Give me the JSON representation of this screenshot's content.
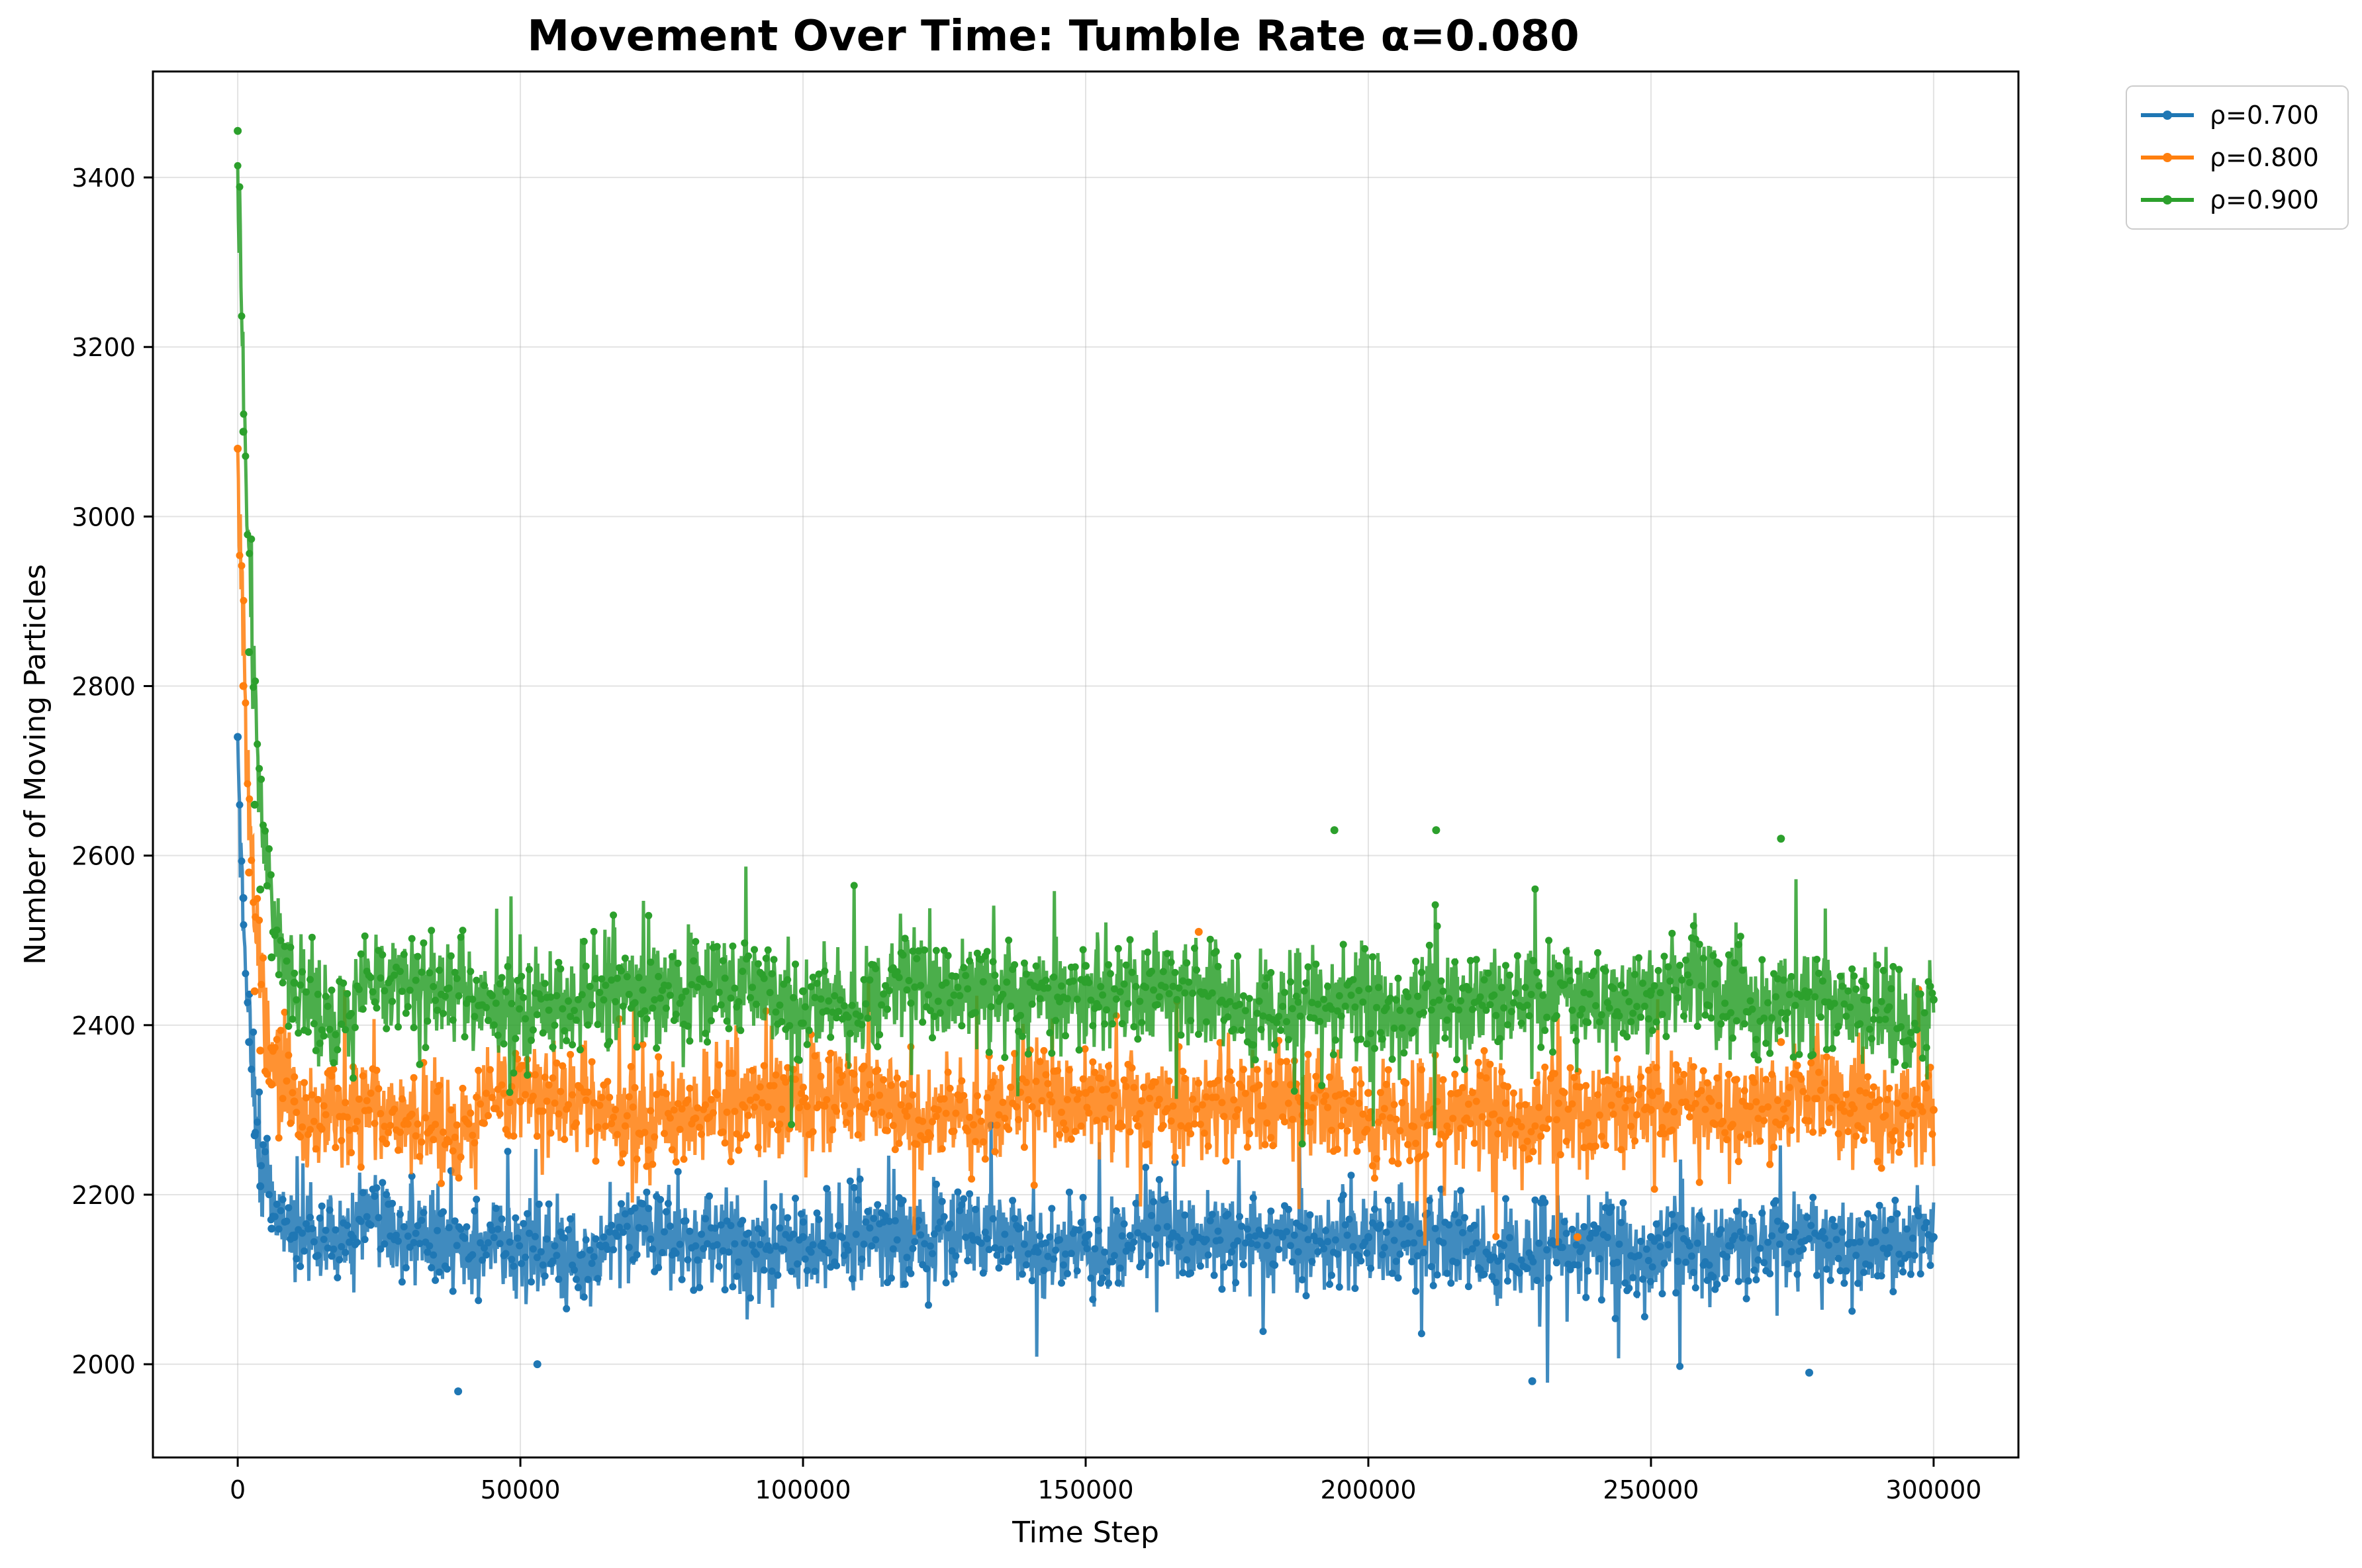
{
  "chart_data": {
    "type": "line",
    "title": "Movement Over Time: Tumble Rate α=0.080",
    "xlabel": "Time Step",
    "ylabel": "Number of Moving Particles",
    "xlim": [
      -15000,
      315000
    ],
    "ylim": [
      1890,
      3525
    ],
    "xticks": [
      0,
      50000,
      100000,
      150000,
      200000,
      250000,
      300000
    ],
    "yticks": [
      2000,
      2200,
      2400,
      2600,
      2800,
      3000,
      3200,
      3400
    ],
    "grid": true,
    "legend_position": "outside-top-right",
    "series": [
      {
        "name": "ρ=0.700",
        "color": "#1f77b4",
        "start_value": 2740,
        "steady_mean": 2150,
        "steady_range": [
          1968,
          2300
        ],
        "decay_steps": 2200,
        "points": [
          [
            0,
            2740
          ],
          [
            1000,
            2550
          ],
          [
            2000,
            2380
          ],
          [
            3000,
            2270
          ],
          [
            4000,
            2210
          ],
          [
            6000,
            2160
          ],
          [
            10000,
            2150
          ],
          [
            39000,
            1968
          ],
          [
            53000,
            2000
          ],
          [
            100000,
            2150
          ],
          [
            150000,
            2150
          ],
          [
            200000,
            2150
          ],
          [
            229000,
            1980
          ],
          [
            250000,
            2150
          ],
          [
            278000,
            1990
          ],
          [
            300000,
            2150
          ]
        ]
      },
      {
        "name": "ρ=0.800",
        "color": "#ff7f0e",
        "start_value": 3080,
        "steady_mean": 2310,
        "steady_range": [
          2140,
          2510
        ],
        "decay_steps": 2500,
        "points": [
          [
            0,
            3080
          ],
          [
            1000,
            2800
          ],
          [
            2000,
            2580
          ],
          [
            3000,
            2440
          ],
          [
            4000,
            2370
          ],
          [
            6000,
            2330
          ],
          [
            10000,
            2310
          ],
          [
            50000,
            2310
          ],
          [
            100000,
            2310
          ],
          [
            150000,
            2320
          ],
          [
            170000,
            2510
          ],
          [
            200000,
            2320
          ],
          [
            237000,
            2150
          ],
          [
            250000,
            2300
          ],
          [
            273000,
            2380
          ],
          [
            300000,
            2300
          ]
        ]
      },
      {
        "name": "ρ=0.900",
        "color": "#2ca02c",
        "start_value": 3455,
        "steady_mean": 2440,
        "steady_range": [
          2260,
          2630
        ],
        "decay_steps": 2800,
        "points": [
          [
            0,
            3455
          ],
          [
            1000,
            3100
          ],
          [
            2000,
            2840
          ],
          [
            3000,
            2660
          ],
          [
            4000,
            2560
          ],
          [
            6000,
            2480
          ],
          [
            10000,
            2450
          ],
          [
            50000,
            2440
          ],
          [
            100000,
            2440
          ],
          [
            150000,
            2470
          ],
          [
            194000,
            2630
          ],
          [
            212000,
            2630
          ],
          [
            250000,
            2440
          ],
          [
            273000,
            2620
          ],
          [
            300000,
            2430
          ]
        ]
      }
    ]
  }
}
